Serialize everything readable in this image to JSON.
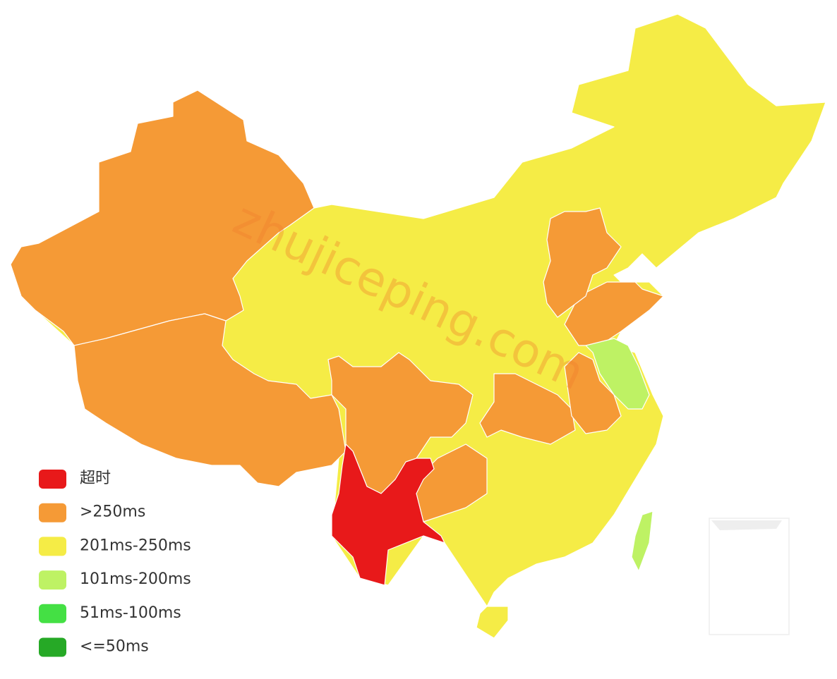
{
  "watermark": "zhujiceping.com",
  "legend": {
    "items": [
      {
        "label": "超时",
        "color": "#e8191a"
      },
      {
        "label": ">250ms",
        "color": "#f59a36"
      },
      {
        "label": "201ms-250ms",
        "color": "#f5ec46"
      },
      {
        "label": "101ms-200ms",
        "color": "#bef264"
      },
      {
        "label": "51ms-100ms",
        "color": "#44e044"
      },
      {
        "label": "<=50ms",
        "color": "#26a926"
      }
    ]
  }
}
